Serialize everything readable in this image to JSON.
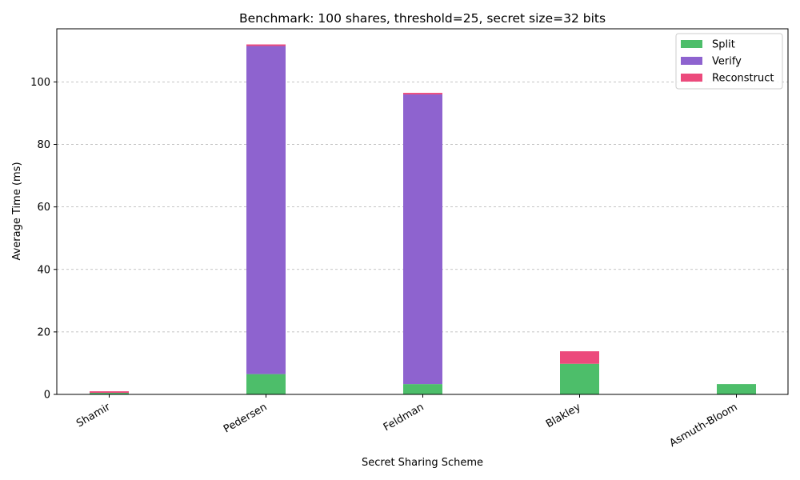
{
  "chart_data": {
    "type": "bar",
    "stacked": true,
    "title": "Benchmark: 100 shares, threshold=25, secret size=32 bits",
    "xlabel": "Secret Sharing Scheme",
    "ylabel": "Average Time (ms)",
    "categories": [
      "Shamir",
      "Pedersen",
      "Feldman",
      "Blakley",
      "Asmuth-Bloom"
    ],
    "series": [
      {
        "name": "Split",
        "color": "#4dbe6a",
        "values": [
          0.5,
          6.5,
          3.3,
          9.8,
          3.3
        ]
      },
      {
        "name": "Verify",
        "color": "#8e63cf",
        "values": [
          0,
          105.0,
          92.7,
          0,
          0
        ]
      },
      {
        "name": "Reconstruct",
        "color": "#ec4a7c",
        "values": [
          0.5,
          0.5,
          0.5,
          4.0,
          0
        ]
      }
    ],
    "ylim": [
      0,
      117
    ],
    "yticks": [
      0,
      20,
      40,
      60,
      80,
      100
    ],
    "grid": "y-dashed",
    "legend_position": "top-right"
  }
}
